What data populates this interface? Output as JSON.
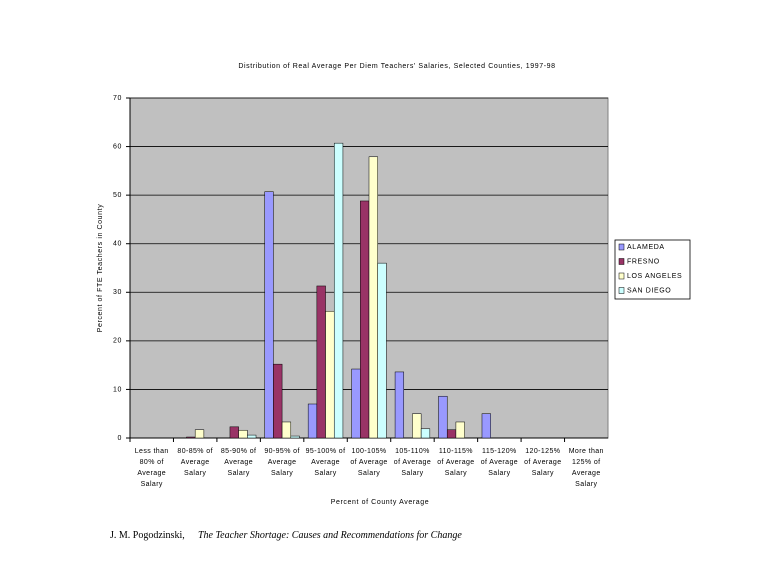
{
  "chart_data": {
    "type": "bar",
    "title": "Distribution of Real Average Per Diem Teachers' Salaries, Selected Counties, 1997-98",
    "x_label": "Percent of County Average",
    "y_label": "Percent of FTE Teachers in County",
    "categories": [
      "Less than 80% of Average Salary",
      "80-85% of Average Salary",
      "85-90% of Average Salary",
      "90-95% of Average Salary",
      "95-100% of Average Salary",
      "100-105% of Average Salary",
      "105-110% of Average Salary",
      "110-115% of Average Salary",
      "115-120% of Average Salary",
      "120-125% of Average Salary",
      "More than 125% of Average Salary"
    ],
    "series": [
      {
        "name": "ALAMEDA",
        "color": "#9999ff",
        "values": [
          0,
          0,
          0,
          50.7,
          7,
          14.2,
          13.6,
          8.6,
          5,
          0,
          0
        ]
      },
      {
        "name": "FRESNO",
        "color": "#993366",
        "values": [
          0,
          0.2,
          2.3,
          15.2,
          31.3,
          48.8,
          0,
          1.7,
          0,
          0,
          0
        ]
      },
      {
        "name": "LOS ANGELES",
        "color": "#ffffcc",
        "values": [
          0,
          1.7,
          1.6,
          3.3,
          26.1,
          57.9,
          5,
          3.3,
          0,
          0,
          0
        ]
      },
      {
        "name": "SAN DIEGO",
        "color": "#ccffff",
        "values": [
          0,
          0,
          0.6,
          0.4,
          60.7,
          36,
          1.9,
          0,
          0,
          0,
          0
        ]
      }
    ],
    "ylim": [
      0,
      70
    ],
    "yticks": [
      0,
      10,
      20,
      30,
      40,
      50,
      60,
      70
    ],
    "grid": true,
    "legend": "right",
    "plot_background": "#c0c0c0"
  },
  "footer": {
    "author": "J. M. Pogodzinski,",
    "work": "The Teacher Shortage: Causes and Recommendations for Change"
  }
}
